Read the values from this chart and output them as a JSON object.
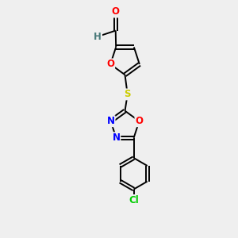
{
  "background_color": "#efefef",
  "bond_color": "#000000",
  "atom_colors": {
    "O": "#ff0000",
    "N": "#0000ff",
    "S": "#cccc00",
    "Cl": "#00cc00",
    "C": "#000000",
    "H": "#4a7a7a"
  },
  "lw": 1.4,
  "fs": 8.5
}
